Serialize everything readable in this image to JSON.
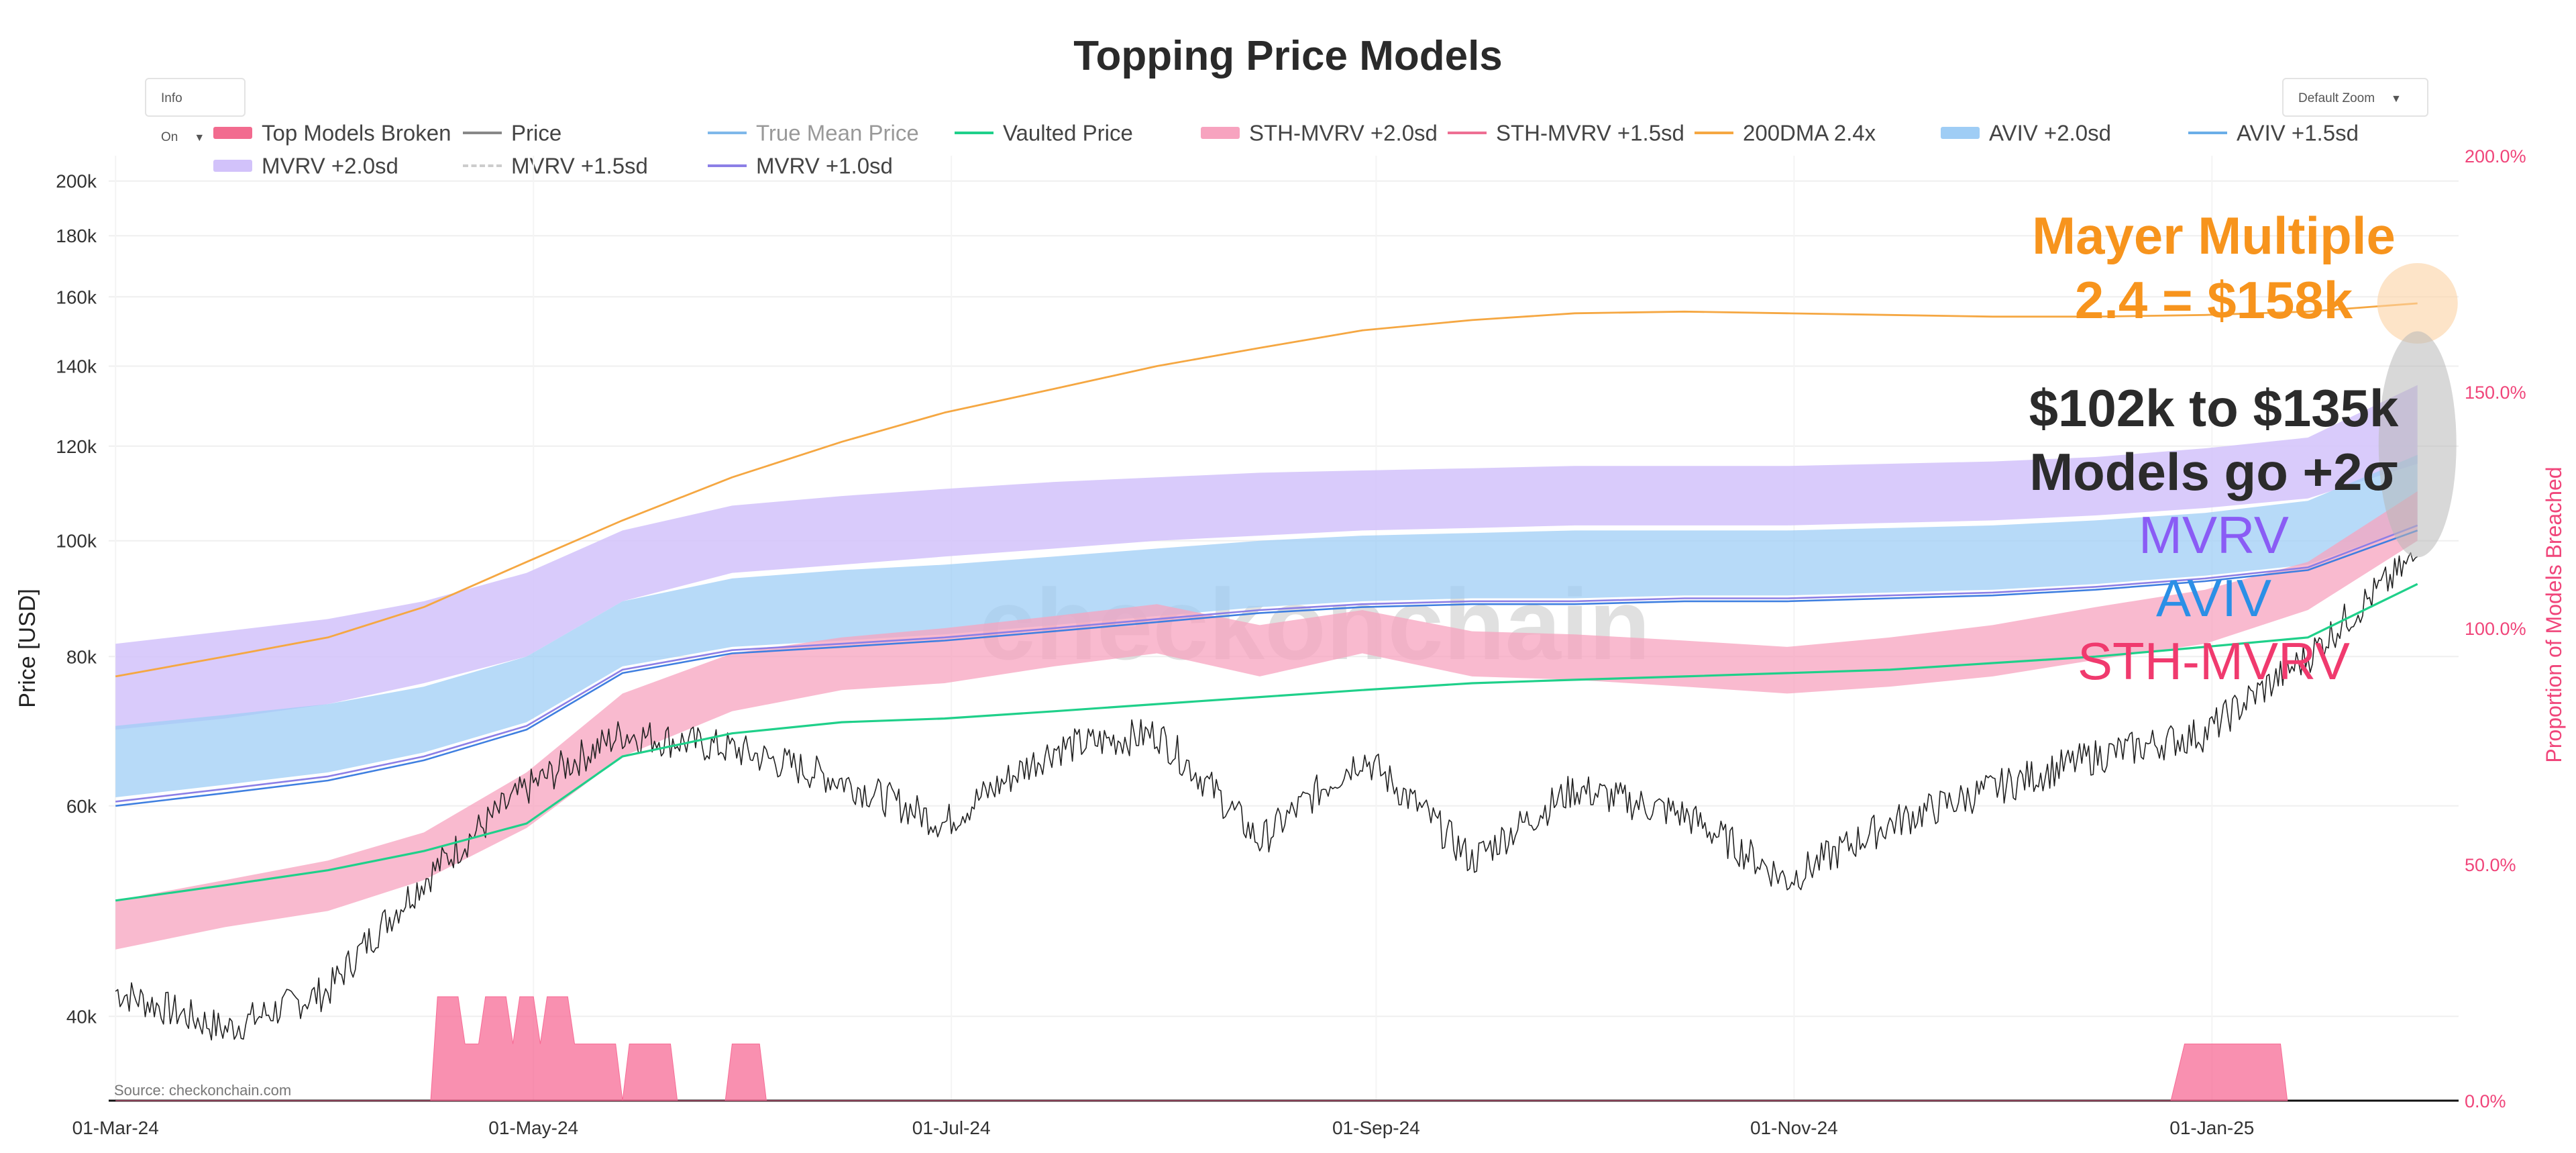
{
  "title": "Topping Price Models",
  "controls": {
    "info_label": "Info On",
    "zoom_label": "Default Zoom"
  },
  "legend": [
    {
      "label": "Top Models Broken",
      "color": "#f26b8f",
      "style": "band"
    },
    {
      "label": "Price",
      "color": "#888888",
      "style": "line"
    },
    {
      "label": "True Mean Price",
      "color": "#7fb8ea",
      "style": "line",
      "muted": true
    },
    {
      "label": "Vaulted Price",
      "color": "#1fd08a",
      "style": "line"
    },
    {
      "label": "STH-MVRV +2.0sd",
      "color": "#f7a3bf",
      "style": "band"
    },
    {
      "label": "STH-MVRV +1.5sd",
      "color": "#ee6f93",
      "style": "line"
    },
    {
      "label": "200DMA 2.4x",
      "color": "#f5a742",
      "style": "line"
    },
    {
      "label": "AVIV +2.0sd",
      "color": "#9fcdf5",
      "style": "band"
    },
    {
      "label": "AVIV +1.5sd",
      "color": "#6aaee8",
      "style": "line"
    },
    {
      "label": "MVRV +2.0sd",
      "color": "#d2c2fa",
      "style": "band"
    },
    {
      "label": "MVRV +1.5sd",
      "color": "#cccccc",
      "style": "dash"
    },
    {
      "label": "MVRV +1.0sd",
      "color": "#8c7fe6",
      "style": "line"
    }
  ],
  "annotations": {
    "mayer_line1": "Mayer Multiple",
    "mayer_line2": "2.4 = $158k",
    "range_line1": "$102k to $135k",
    "range_line2": "Models go +2σ",
    "model_mvrv": "MVRV",
    "model_aviv": "AVIV",
    "model_sth": "STH-MVRV",
    "watermark": "checkonchain",
    "source": "Source: checkonchain.com"
  },
  "colors": {
    "mayer": "#f7941d",
    "range": "#2b2b2b",
    "mvrv": "#8a5cf5",
    "aviv": "#2b8fe6",
    "sth": "#f03a6e",
    "right_axis": "#f0457a"
  },
  "chart_data": {
    "type": "line",
    "title": "Topping Price Models",
    "ylabel": "Price [USD]",
    "y2label": "Proportion of Models Breached",
    "yscale": "log",
    "ylim": [
      34000,
      210000
    ],
    "y2lim": [
      0,
      200
    ],
    "x_ticks": [
      "01-Mar-24",
      "01-May-24",
      "01-Jul-24",
      "01-Sep-24",
      "01-Nov-24",
      "01-Jan-25"
    ],
    "y_ticks": [
      {
        "v": 40000,
        "label": "40k"
      },
      {
        "v": 60000,
        "label": "60k"
      },
      {
        "v": 80000,
        "label": "80k"
      },
      {
        "v": 100000,
        "label": "100k"
      },
      {
        "v": 120000,
        "label": "120k"
      },
      {
        "v": 140000,
        "label": "140k"
      },
      {
        "v": 160000,
        "label": "160k"
      },
      {
        "v": 180000,
        "label": "180k"
      },
      {
        "v": 200000,
        "label": "200k"
      }
    ],
    "y2_ticks": [
      {
        "v": 0,
        "label": "0.0%"
      },
      {
        "v": 50,
        "label": "50.0%"
      },
      {
        "v": 100,
        "label": "100.0%"
      },
      {
        "v": 150,
        "label": "150.0%"
      },
      {
        "v": 200,
        "label": "200.0%"
      }
    ],
    "days": [
      0,
      16,
      31,
      45,
      60,
      74,
      90,
      106,
      121,
      137,
      152,
      167,
      182,
      198,
      213,
      229,
      244,
      259,
      274,
      289,
      305,
      320,
      336
    ],
    "series": [
      {
        "name": "Price",
        "color": "#222222",
        "width": 1.6,
        "values": [
          42000,
          39000,
          42000,
          52000,
          62000,
          69000,
          67000,
          63000,
          58000,
          67000,
          69000,
          56000,
          66000,
          54000,
          62000,
          59000,
          52000,
          58000,
          62000,
          66000,
          69000,
          80000,
          97000
        ]
      },
      {
        "name": "Vaulted Price",
        "color": "#1fd08a",
        "width": 3.2,
        "values": [
          50000,
          51500,
          53000,
          55000,
          58000,
          66000,
          69000,
          70500,
          71000,
          72000,
          73000,
          74000,
          75000,
          76000,
          76500,
          77000,
          77500,
          78000,
          79000,
          80000,
          81500,
          83000,
          92000
        ]
      },
      {
        "name": "200DMA 2.4x",
        "color": "#f5a742",
        "width": 2.8,
        "values": [
          77000,
          80000,
          83000,
          88000,
          96000,
          104000,
          113000,
          121000,
          128000,
          134000,
          140000,
          145000,
          150000,
          153000,
          155000,
          155500,
          155000,
          154500,
          154000,
          154000,
          154500,
          155500,
          158000
        ]
      },
      {
        "name": "MVRV +1.0sd",
        "color": "#8c7fe6",
        "width": 2.6,
        "values": [
          60500,
          62000,
          63500,
          66000,
          70000,
          78000,
          81000,
          82000,
          83000,
          84500,
          86000,
          87500,
          88500,
          89000,
          89000,
          89500,
          89500,
          90000,
          90500,
          91500,
          93000,
          95000,
          103000
        ]
      },
      {
        "name": "AVIV +1.5sd",
        "color": "#3f7fe0",
        "width": 2.6,
        "values": [
          60000,
          61500,
          63000,
          65500,
          69500,
          77500,
          80500,
          81500,
          82500,
          84000,
          85500,
          87000,
          88000,
          88500,
          88500,
          89000,
          89000,
          89500,
          90000,
          91000,
          92500,
          94500,
          102000
        ]
      }
    ],
    "bands": [
      {
        "name": "MVRV +2.0sd",
        "color": "#d2c2fa",
        "opacity": 0.85,
        "lower": [
          69500,
          71000,
          73000,
          76000,
          80000,
          89000,
          94000,
          95500,
          97000,
          98500,
          100000,
          101000,
          102000,
          102500,
          103000,
          103000,
          103000,
          103500,
          104000,
          105000,
          106500,
          108500,
          116000
        ],
        "upper": [
          82000,
          84000,
          86000,
          89000,
          94000,
          102000,
          107000,
          109000,
          110500,
          112000,
          113000,
          114000,
          114500,
          115000,
          115500,
          115500,
          115500,
          116000,
          116500,
          117500,
          119500,
          122000,
          135000
        ]
      },
      {
        "name": "AVIV +2.0sd",
        "color": "#9fcdf5",
        "opacity": 0.75,
        "lower": [
          61000,
          62500,
          64000,
          66500,
          70500,
          78500,
          81500,
          82500,
          83500,
          85000,
          86500,
          88000,
          89000,
          89500,
          89500,
          90000,
          90000,
          90500,
          91000,
          92000,
          93500,
          95500,
          103000
        ],
        "upper": [
          70000,
          71500,
          73000,
          75500,
          80000,
          89000,
          93000,
          94500,
          95500,
          97000,
          98500,
          100000,
          101000,
          101500,
          102000,
          102000,
          102000,
          102500,
          103000,
          104000,
          105500,
          108000,
          118000
        ]
      },
      {
        "name": "STH-MVRV +2.0sd",
        "color": "#f7a3bf",
        "opacity": 0.75,
        "lower": [
          45500,
          47500,
          49000,
          52000,
          57500,
          66000,
          72000,
          75000,
          76000,
          78500,
          80500,
          77000,
          80500,
          77000,
          76500,
          75500,
          74500,
          75500,
          77000,
          79500,
          82000,
          87500,
          100000
        ],
        "upper": [
          50000,
          52000,
          54000,
          57000,
          64000,
          74500,
          80500,
          83000,
          84500,
          86500,
          88500,
          85000,
          87500,
          84000,
          83500,
          82500,
          81500,
          83000,
          85000,
          88000,
          91000,
          96000,
          110000
        ]
      }
    ],
    "breach": {
      "name": "Top Models Broken",
      "color": "#f76b95",
      "points": [
        [
          0,
          0
        ],
        [
          46,
          0
        ],
        [
          47,
          22
        ],
        [
          50,
          22
        ],
        [
          51,
          12
        ],
        [
          53,
          12
        ],
        [
          54,
          22
        ],
        [
          57,
          22
        ],
        [
          58,
          12
        ],
        [
          59,
          22
        ],
        [
          61,
          22
        ],
        [
          62,
          12
        ],
        [
          63,
          22
        ],
        [
          66,
          22
        ],
        [
          67,
          12
        ],
        [
          73,
          12
        ],
        [
          74,
          0
        ],
        [
          75,
          12
        ],
        [
          81,
          12
        ],
        [
          82,
          0
        ],
        [
          89,
          0
        ],
        [
          90,
          12
        ],
        [
          94,
          12
        ],
        [
          95,
          0
        ],
        [
          300,
          0
        ],
        [
          302,
          12
        ],
        [
          316,
          12
        ],
        [
          317,
          0
        ]
      ]
    },
    "x_domain": [
      -1,
      342
    ]
  }
}
